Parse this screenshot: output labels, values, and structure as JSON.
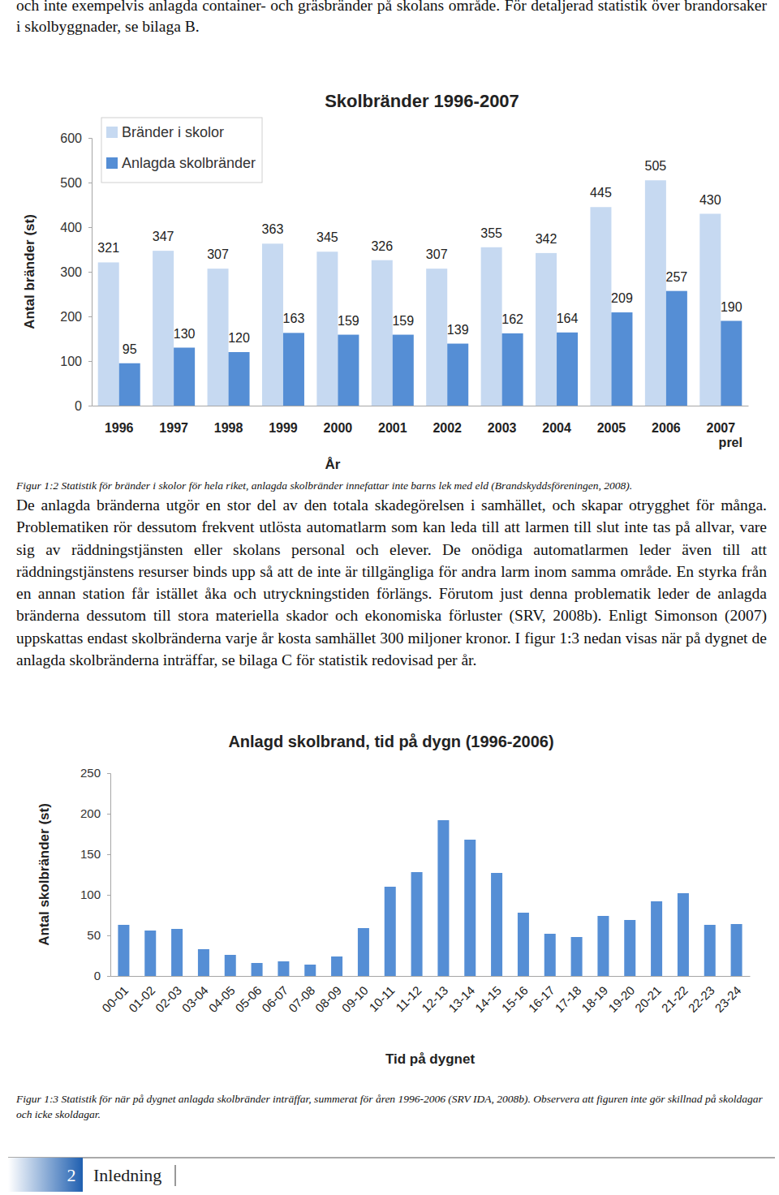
{
  "header": {
    "text": "och inte exempelvis anlagda container- och gräsbränder på skolans område. För detaljerad statistik över brandorsaker i skolbyggnader, se bilaga B."
  },
  "chart_data": [
    {
      "type": "bar",
      "title": "Skolbränder 1996-2007",
      "x_label": "År",
      "y_label": "Antal bränder (st)",
      "categories": [
        "1996",
        "1997",
        "1998",
        "1999",
        "2000",
        "2001",
        "2002",
        "2003",
        "2004",
        "2005",
        "2006",
        "2007 prel"
      ],
      "series": [
        {
          "name": "Bränder i skolor",
          "color": "#c6d9f1",
          "values": [
            321,
            347,
            307,
            363,
            345,
            326,
            307,
            355,
            342,
            445,
            505,
            430
          ]
        },
        {
          "name": "Anlagda skolbränder",
          "color": "#558ed5",
          "values": [
            95,
            130,
            120,
            163,
            159,
            159,
            139,
            162,
            164,
            209,
            257,
            190
          ]
        }
      ],
      "ylim": [
        0,
        600
      ],
      "yticks": [
        0,
        100,
        200,
        300,
        400,
        500,
        600
      ],
      "grid": false,
      "legend": "upper left",
      "data_labels": true
    },
    {
      "type": "bar",
      "title": "Anlagd skolbrand, tid på dygn (1996-2006)",
      "x_label": "Tid på dygnet",
      "y_label": "Antal skolbränder (st)",
      "categories": [
        "00-01",
        "01-02",
        "02-03",
        "03-04",
        "04-05",
        "05-06",
        "06-07",
        "07-08",
        "08-09",
        "09-10",
        "10-11",
        "11-12",
        "12-13",
        "13-14",
        "14-15",
        "15-16",
        "16-17",
        "17-18",
        "18-19",
        "19-20",
        "20-21",
        "21-22",
        "22-23",
        "23-24"
      ],
      "values": [
        63,
        56,
        58,
        33,
        26,
        16,
        18,
        14,
        24,
        59,
        110,
        128,
        192,
        168,
        127,
        78,
        52,
        48,
        74,
        69,
        92,
        102,
        63,
        64
      ],
      "color": "#558ed5",
      "ylim": [
        0,
        250
      ],
      "yticks": [
        0,
        50,
        100,
        150,
        200,
        250
      ],
      "grid": false
    }
  ],
  "captions": [
    "Figur 1:2 Statistik för bränder i skolor för hela riket, anlagda skolbränder innefattar inte barns lek med eld (Brandskyddsföreningen, 2008).",
    "Figur 1:3 Statistik för när på dygnet anlagda skolbränder inträffar, summerat för åren 1996-2006 (SRV IDA, 2008b). Observera att figuren inte gör skillnad på skoldagar och icke skoldagar."
  ],
  "paragraph": "De anlagda bränderna utgör en stor del av den totala skadegörelsen i samhället, och skapar otrygghet för många. Problematiken rör dessutom frekvent utlösta automatlarm som kan leda till att larmen till slut inte tas på allvar, vare sig av räddningstjänsten eller skolans personal och elever. De onödiga automatlarmen leder även till att räddningstjänstens resurser binds upp så att de inte är tillgängliga för andra larm inom samma område. En styrka från en annan station får istället åka och utryckningstiden förlängs. Förutom just denna problematik leder de anlagda bränderna dessutom till stora materiella skador och ekonomiska förluster (SRV, 2008b). Enligt Simonson (2007) uppskattas endast skolbränderna varje år kosta samhället 300 miljoner kronor. I figur 1:3 nedan visas när på dygnet de anlagda skolbränderna inträffar, se bilaga C för statistik redovisad per år.",
  "footer": {
    "page": "2",
    "section": "Inledning"
  }
}
